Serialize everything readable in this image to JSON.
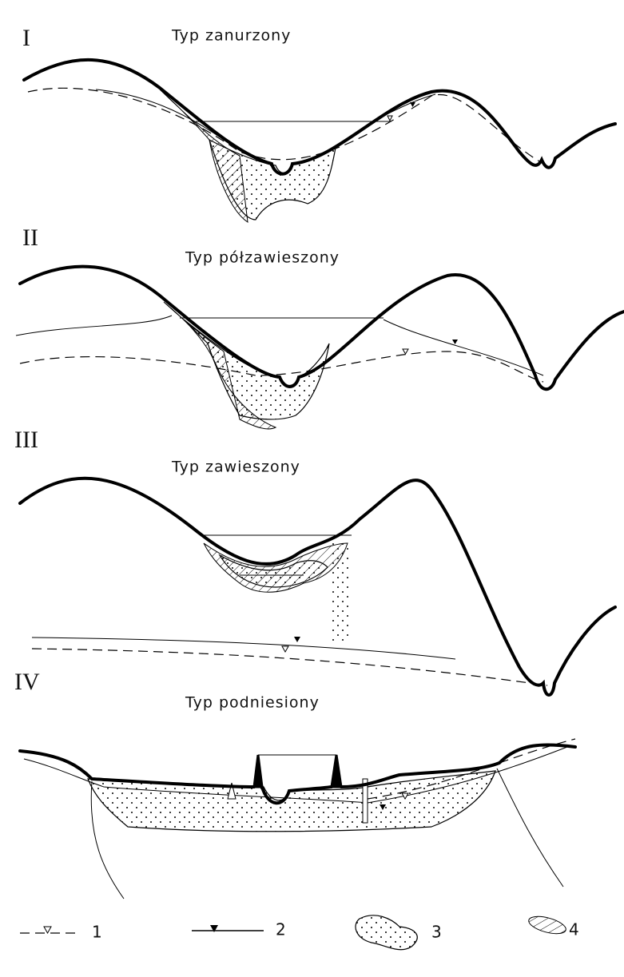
{
  "panels": [
    {
      "numeral": "I",
      "title": "Typ zanurzony"
    },
    {
      "numeral": "II",
      "title": "Typ półzawieszony"
    },
    {
      "numeral": "III",
      "title": "Typ zawieszony"
    },
    {
      "numeral": "IV",
      "title": "Typ podniesiony"
    }
  ],
  "legend": [
    "1",
    "2",
    "3",
    "4"
  ]
}
